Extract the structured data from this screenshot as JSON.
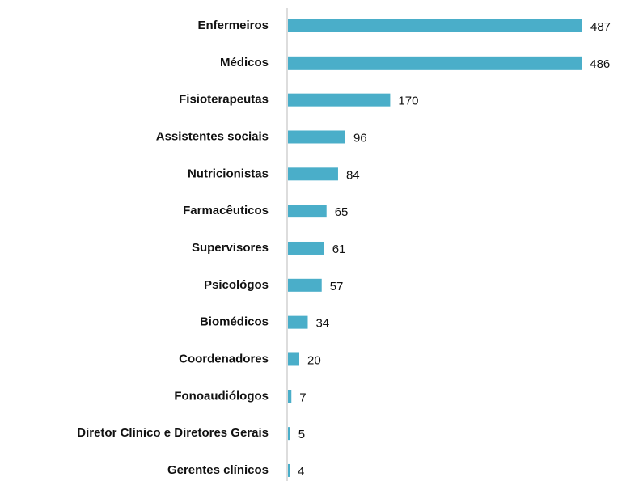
{
  "chart_data": {
    "type": "bar",
    "orientation": "horizontal",
    "categories": [
      "Enfermeiros",
      "Médicos",
      "Fisioterapeutas",
      "Assistentes sociais",
      "Nutricionistas",
      "Farmacêuticos",
      "Supervisores",
      "Psicológos",
      "Biomédicos",
      "Coordenadores",
      "Fonoaudiólogos",
      "Diretor Clínico e Diretores Gerais",
      "Gerentes clínicos"
    ],
    "values": [
      487,
      486,
      170,
      96,
      84,
      65,
      61,
      57,
      34,
      20,
      7,
      5,
      4
    ],
    "color": "#4aaec9"
  }
}
